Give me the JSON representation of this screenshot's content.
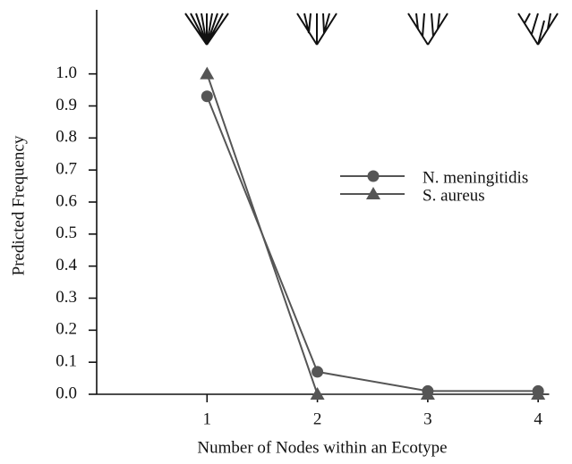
{
  "chart_data": {
    "type": "line",
    "x_label": "Number of Nodes within an Ecotype",
    "y_label": "Predicted Frequency",
    "x": [
      1,
      2,
      3,
      4
    ],
    "xlim": [
      0,
      4.1
    ],
    "xticks": [
      1,
      2,
      3,
      4
    ],
    "ylim": [
      0,
      1.2
    ],
    "yticks": [
      {
        "value": 0,
        "label": "0.0"
      },
      0.1,
      0.2,
      0.3,
      0.4,
      0.5,
      0.6,
      0.7,
      0.8,
      0.9,
      {
        "value": 1,
        "label": "1.0"
      }
    ],
    "series": [
      {
        "name": "N. meningitidis",
        "color": "#555555",
        "marker": "circle",
        "values": [
          0.93,
          0.07,
          0.01,
          0.01
        ]
      },
      {
        "name": "S. aureus",
        "color": "#555555",
        "marker": "triangle",
        "values": [
          1.0,
          0.0,
          0.0,
          0.0
        ]
      }
    ]
  }
}
